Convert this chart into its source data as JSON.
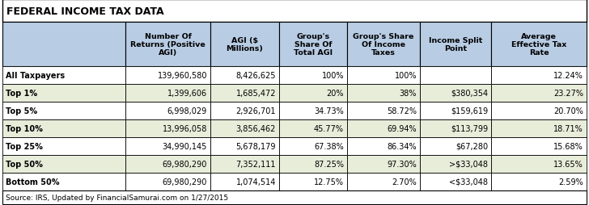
{
  "title": "FEDERAL INCOME TAX DATA",
  "source": "Source: IRS, Updated by FinancialSamurai.com on 1/27/2015",
  "col_headers": [
    "Number Of\nReturns (Positive\nAGI)",
    "AGI ($\nMillions)",
    "Group's\nShare Of\nTotal AGI",
    "Group's Share\nOf Income\nTaxes",
    "Income Split\nPoint",
    "Average\nEffective Tax\nRate"
  ],
  "row_labels": [
    "All Taxpayers",
    "Top 1%",
    "Top 5%",
    "Top 10%",
    "Top 25%",
    "Top 50%",
    "Bottom 50%"
  ],
  "table_data": [
    [
      "139,960,580",
      "8,426,625",
      "100%",
      "100%",
      "",
      "12.24%"
    ],
    [
      "1,399,606",
      "1,685,472",
      "20%",
      "38%",
      "$380,354",
      "23.27%"
    ],
    [
      "6,998,029",
      "2,926,701",
      "34.73%",
      "58.72%",
      "$159,619",
      "20.70%"
    ],
    [
      "13,996,058",
      "3,856,462",
      "45.77%",
      "69.94%",
      "$113,799",
      "18.71%"
    ],
    [
      "34,990,145",
      "5,678,179",
      "67.38%",
      "86.34%",
      "$67,280",
      "15.68%"
    ],
    [
      "69,980,290",
      "7,352,111",
      "87.25%",
      "97.30%",
      ">$33,048",
      "13.65%"
    ],
    [
      "69,980,290",
      "1,074,514",
      "12.75%",
      "2.70%",
      "<$33,048",
      "2.59%"
    ]
  ],
  "row_bg_colors": [
    "#ffffff",
    "#e8edda",
    "#ffffff",
    "#e8edda",
    "#ffffff",
    "#e8edda",
    "#ffffff"
  ],
  "header_bg": "#b8cce4",
  "row_label_bg_colors": [
    "#ffffff",
    "#e8edda",
    "#ffffff",
    "#e8edda",
    "#ffffff",
    "#e8edda",
    "#ffffff"
  ],
  "title_bg": "#ffffff",
  "border_color": "#000000",
  "text_color": "#000000",
  "fig_bg": "#ffffff",
  "title_fontsize": 9.0,
  "header_fontsize": 6.8,
  "cell_fontsize": 7.0,
  "source_fontsize": 6.5
}
